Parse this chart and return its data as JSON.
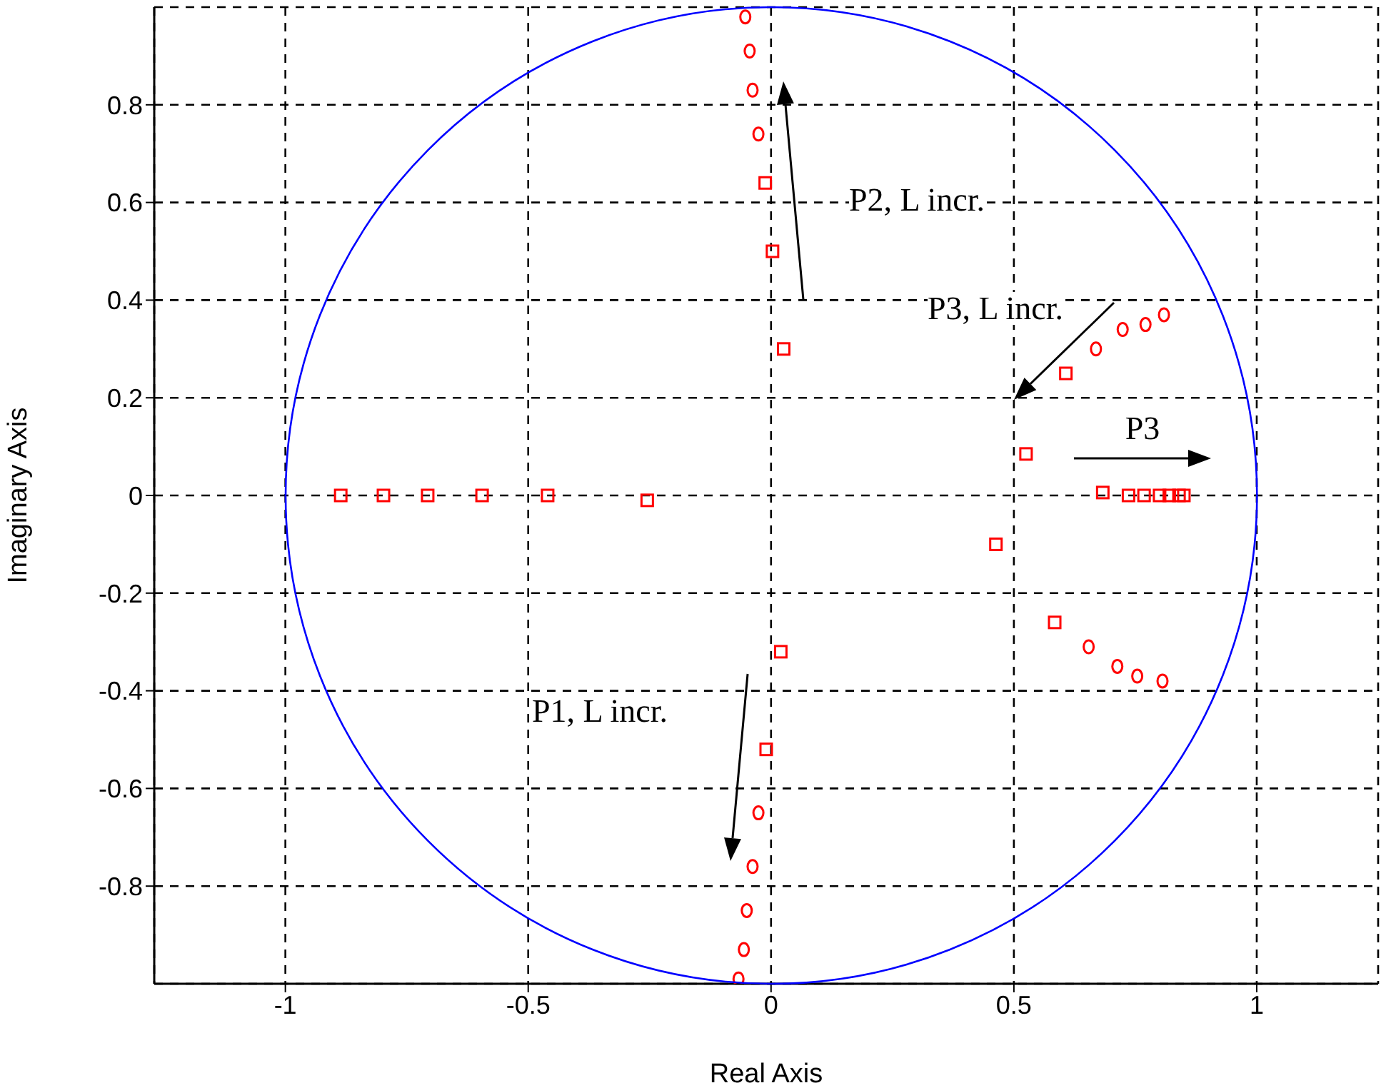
{
  "chart_data": {
    "type": "scatter",
    "xlabel": "Real Axis",
    "ylabel": "Imaginary Axis",
    "xlim": [
      -1.27,
      1.25
    ],
    "xticks": [
      -1,
      -0.5,
      0,
      0.5,
      1
    ],
    "ylim": [
      -1,
      1
    ],
    "yticks": [
      -0.8,
      -0.6,
      -0.4,
      -0.2,
      0,
      0.2,
      0.4,
      0.6,
      0.8
    ],
    "grid": true,
    "annotations": [
      "P2, L incr.",
      "P3, L incr.",
      "P3",
      "P1, L incr."
    ],
    "series": [
      {
        "color": "#ff0000",
        "marker": "square",
        "x": [
          0.026,
          0.003,
          -0.012,
          0.02,
          -0.01,
          -0.886,
          -0.798,
          -0.707,
          -0.595,
          -0.46,
          -0.255,
          0.525,
          0.463,
          0.683,
          0.736,
          0.768,
          0.8,
          0.82,
          0.84,
          0.85,
          0.607,
          0.584
        ],
        "values": [
          0.3,
          0.5,
          0.64,
          -0.32,
          -0.52,
          0,
          0,
          0,
          0,
          0,
          -0.01,
          0.085,
          -0.1,
          0.006,
          0,
          0,
          0,
          0,
          0,
          0,
          0.25,
          -0.26
        ]
      },
      {
        "color": "#ff0000",
        "marker": "circle",
        "x": [
          -0.026,
          -0.038,
          -0.044,
          -0.053,
          -0.026,
          -0.038,
          -0.05,
          -0.056,
          -0.067,
          0.669,
          0.724,
          0.771,
          0.809,
          0.654,
          0.713,
          0.754,
          0.806
        ],
        "values": [
          0.74,
          0.83,
          0.91,
          0.98,
          -0.65,
          -0.76,
          -0.85,
          -0.93,
          -0.99,
          0.3,
          0.34,
          0.35,
          0.37,
          -0.31,
          -0.35,
          -0.37,
          -0.38
        ]
      }
    ]
  }
}
